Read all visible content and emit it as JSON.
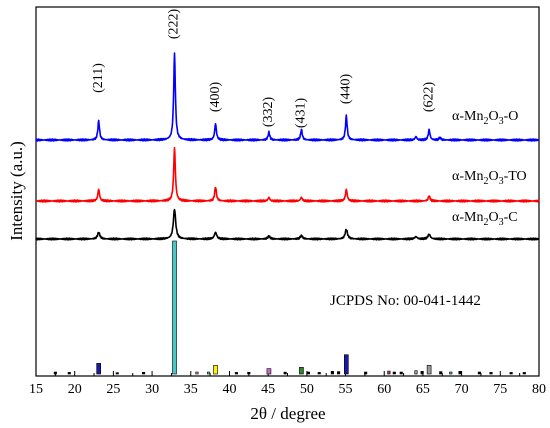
{
  "chart_data": {
    "type": "line",
    "xlabel": "2θ / degree",
    "ylabel": "Intensity (a.u.)",
    "xlim": [
      15,
      80
    ],
    "xticks": [
      15,
      20,
      25,
      30,
      35,
      40,
      45,
      50,
      55,
      60,
      65,
      70,
      75,
      80
    ],
    "grid": false,
    "series": [
      {
        "name": "α-Mn2O3-O",
        "label_parts": [
          "α-Mn",
          "2",
          "O",
          "3",
          "-O"
        ],
        "color": "#0000ff",
        "peaks": [
          [
            23.1,
            0.22
          ],
          [
            32.9,
            1.0
          ],
          [
            38.2,
            0.19
          ],
          [
            45.1,
            0.09
          ],
          [
            49.3,
            0.12
          ],
          [
            55.1,
            0.28
          ],
          [
            64.1,
            0.04
          ],
          [
            65.8,
            0.12
          ],
          [
            67.2,
            0.03
          ]
        ]
      },
      {
        "name": "α-Mn2O3-TO",
        "label_parts": [
          "α-Mn",
          "2",
          "O",
          "3",
          "-TO"
        ],
        "color": "#ff0000",
        "peaks": [
          [
            23.1,
            0.22
          ],
          [
            32.9,
            1.0
          ],
          [
            38.2,
            0.27
          ],
          [
            45.1,
            0.07
          ],
          [
            49.3,
            0.07
          ],
          [
            55.1,
            0.22
          ],
          [
            65.8,
            0.1
          ]
        ]
      },
      {
        "name": "α-Mn2O3-C",
        "label_parts": [
          "α-Mn",
          "2",
          "O",
          "3",
          "-C"
        ],
        "color": "#000000",
        "peaks": [
          [
            23.1,
            0.22
          ],
          [
            32.9,
            1.0
          ],
          [
            38.2,
            0.22
          ],
          [
            45.1,
            0.09
          ],
          [
            49.3,
            0.11
          ],
          [
            55.1,
            0.32
          ],
          [
            64.1,
            0.08
          ],
          [
            65.8,
            0.16
          ]
        ]
      }
    ],
    "peak_labels": [
      {
        "hkl": "(211)",
        "x": 23.1
      },
      {
        "hkl": "(222)",
        "x": 32.9
      },
      {
        "hkl": "(400)",
        "x": 38.2
      },
      {
        "hkl": "(332)",
        "x": 45.1
      },
      {
        "hkl": "(431)",
        "x": 49.3
      },
      {
        "hkl": "(440)",
        "x": 55.1
      },
      {
        "hkl": "(622)",
        "x": 65.8
      }
    ],
    "reference": {
      "label": "JCPDS No: 00-041-1442",
      "lines": [
        {
          "x": 17.5,
          "h": 1.5,
          "color": "#000000"
        },
        {
          "x": 19.3,
          "h": 1.2,
          "color": "#000000"
        },
        {
          "x": 23.1,
          "h": 8.0,
          "color": "#1a1aa0"
        },
        {
          "x": 25.5,
          "h": 1.0,
          "color": "#000000"
        },
        {
          "x": 28.9,
          "h": 1.3,
          "color": "#000000"
        },
        {
          "x": 32.9,
          "h": 100,
          "color": "#47c8c8"
        },
        {
          "x": 35.8,
          "h": 1.5,
          "color": "#ff66cc"
        },
        {
          "x": 37.3,
          "h": 1.5,
          "color": "#66dd66"
        },
        {
          "x": 38.2,
          "h": 6.5,
          "color": "#ffee00"
        },
        {
          "x": 40.9,
          "h": 1.2,
          "color": "#000000"
        },
        {
          "x": 42.5,
          "h": 1.3,
          "color": "#000000"
        },
        {
          "x": 45.1,
          "h": 4.0,
          "color": "#cc66cc"
        },
        {
          "x": 47.2,
          "h": 1.4,
          "color": "#000000"
        },
        {
          "x": 49.3,
          "h": 5.0,
          "color": "#2a8a2a"
        },
        {
          "x": 50.2,
          "h": 1.5,
          "color": "#000000"
        },
        {
          "x": 51.6,
          "h": 1.2,
          "color": "#000000"
        },
        {
          "x": 53.3,
          "h": 2.0,
          "color": "#000000"
        },
        {
          "x": 54.1,
          "h": 1.8,
          "color": "#000000"
        },
        {
          "x": 55.1,
          "h": 14.5,
          "color": "#1a1aa0"
        },
        {
          "x": 57.6,
          "h": 1.5,
          "color": "#000000"
        },
        {
          "x": 60.6,
          "h": 2.2,
          "color": "#cc3366"
        },
        {
          "x": 61.3,
          "h": 1.5,
          "color": "#000000"
        },
        {
          "x": 62.2,
          "h": 1.5,
          "color": "#000000"
        },
        {
          "x": 64.1,
          "h": 2.5,
          "color": "#999999"
        },
        {
          "x": 64.9,
          "h": 2.0,
          "color": "#000000"
        },
        {
          "x": 65.8,
          "h": 6.5,
          "color": "#999999"
        },
        {
          "x": 67.3,
          "h": 1.8,
          "color": "#000000"
        },
        {
          "x": 68.6,
          "h": 1.5,
          "color": "#66aaaa"
        },
        {
          "x": 69.8,
          "h": 2.0,
          "color": "#000000"
        },
        {
          "x": 72.3,
          "h": 1.5,
          "color": "#000000"
        },
        {
          "x": 73.8,
          "h": 1.2,
          "color": "#000000"
        },
        {
          "x": 76.4,
          "h": 1.2,
          "color": "#000000"
        },
        {
          "x": 78.1,
          "h": 1.2,
          "color": "#000000"
        }
      ]
    }
  }
}
